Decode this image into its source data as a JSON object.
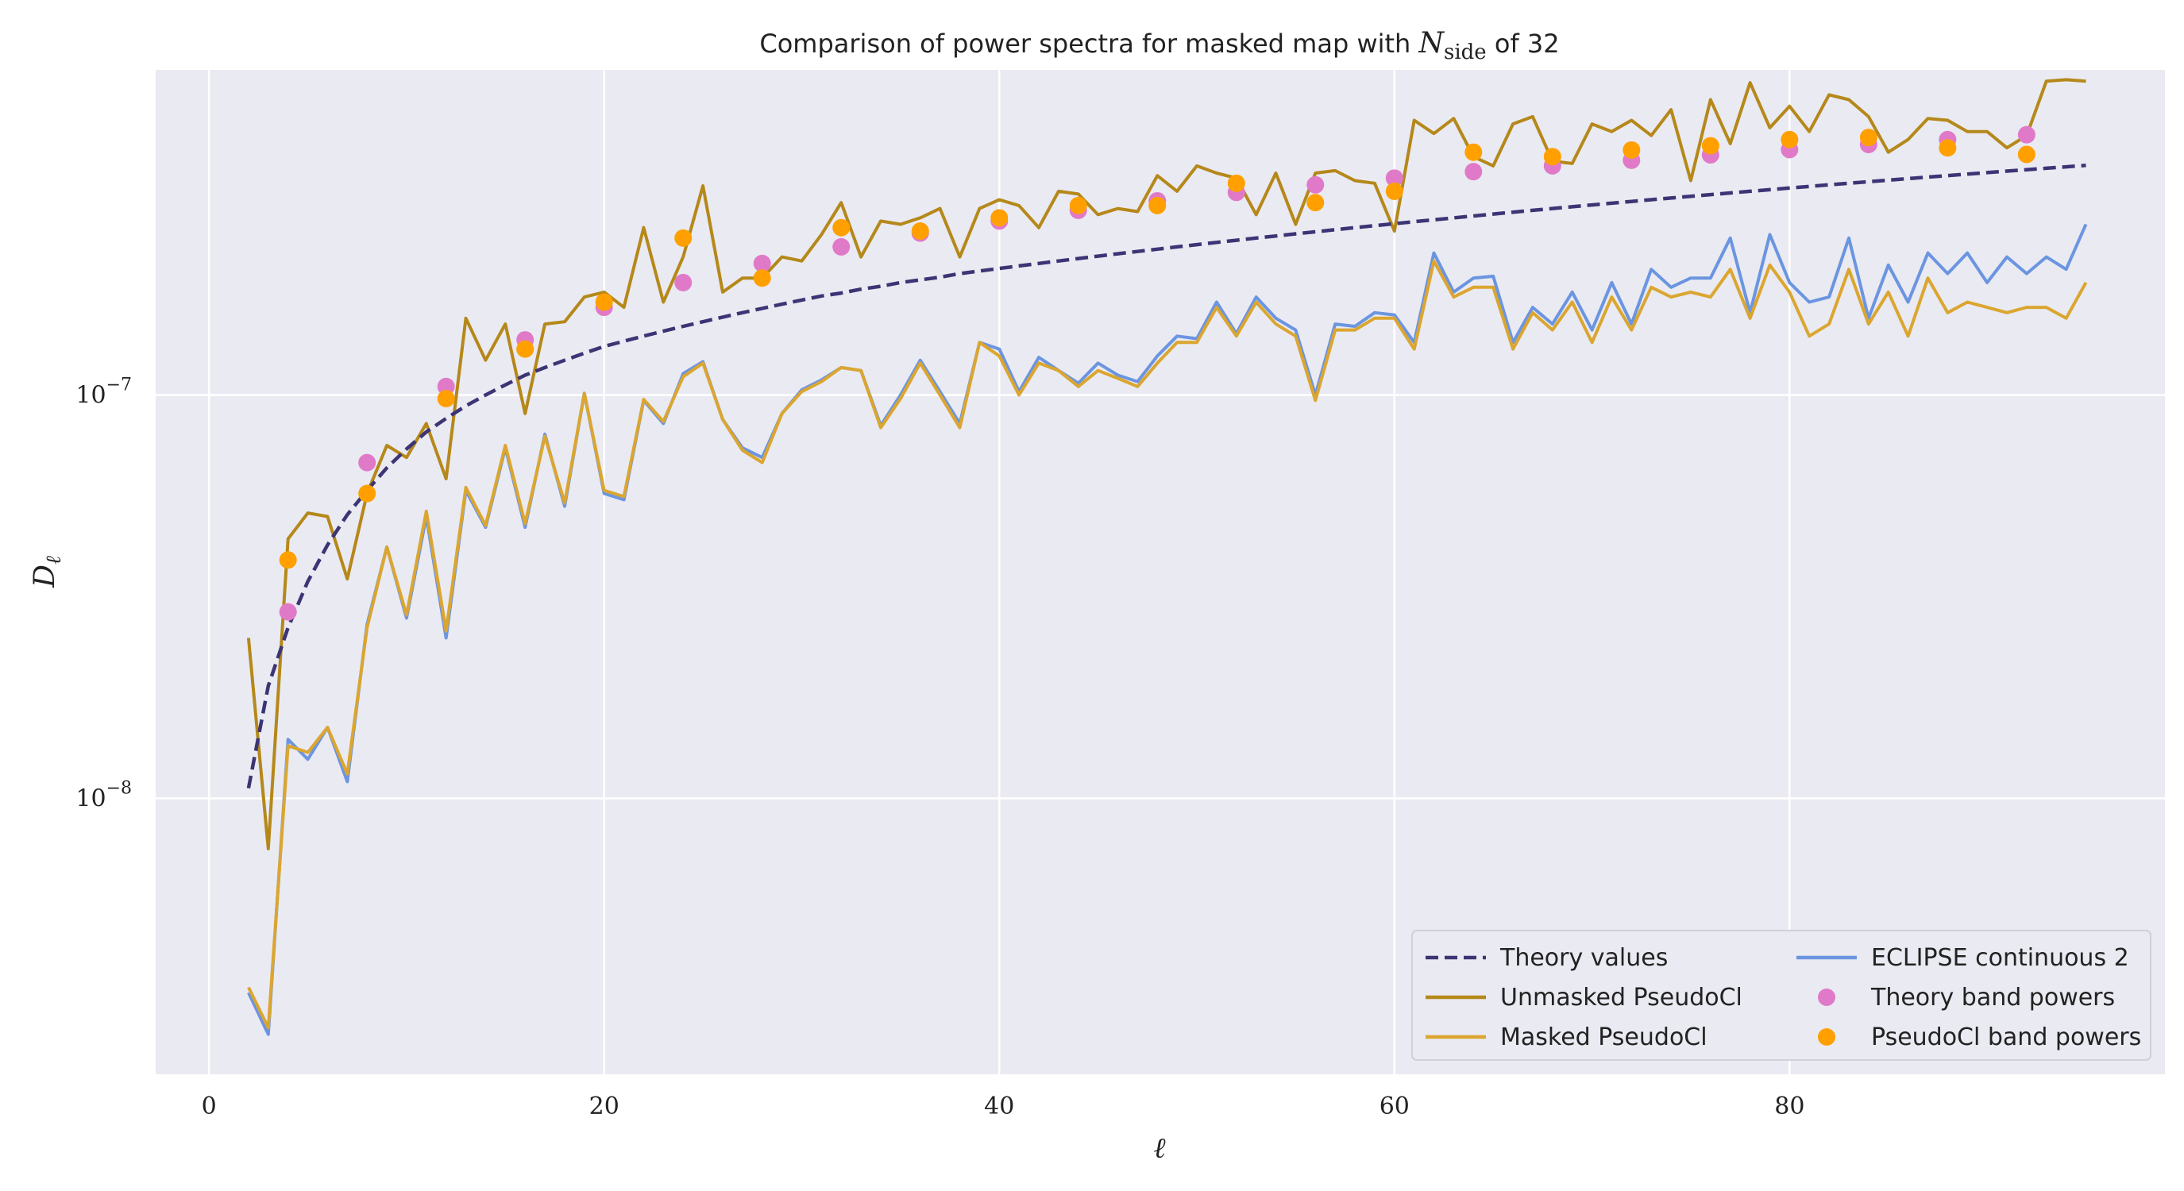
{
  "chart_data": {
    "type": "line",
    "title_prefix": "Comparison of power spectra for masked map with ",
    "title_var": "N",
    "title_sub": "side",
    "title_suffix": " of 32",
    "xlabel": "ℓ",
    "ylabel_var": "D",
    "ylabel_sub": "ℓ",
    "xlim": [
      -2.7,
      99
    ],
    "ylim": [
      2.07e-09,
      6.4e-07
    ],
    "yscale": "log",
    "grid": true,
    "legend_position": "bottom-right",
    "x_ticks": [
      0,
      20,
      40,
      60,
      80
    ],
    "x_tick_labels": [
      "0",
      "20",
      "40",
      "60",
      "80"
    ],
    "y_ticks": [
      1e-08,
      1e-07
    ],
    "y_tick_labels": [
      {
        "base": "10",
        "exp": "−8"
      },
      {
        "base": "10",
        "exp": "−7"
      }
    ],
    "colors": {
      "background": "#eaeaf2",
      "grid": "#ffffff",
      "theory": "#3b3575",
      "unmasked": "#b5881a",
      "masked": "#dba630",
      "eclipse": "#6b95e0",
      "theory_bp": "#e07ac8",
      "pseudo_bp": "#ffa000"
    },
    "legend": [
      {
        "key": "theory",
        "label": "Theory values",
        "kind": "dashed"
      },
      {
        "key": "unmasked",
        "label": "Unmasked PseudoCl",
        "kind": "line"
      },
      {
        "key": "masked",
        "label": "Masked PseudoCl",
        "kind": "line"
      },
      {
        "key": "eclipse",
        "label": "ECLIPSE continuous 2",
        "kind": "line"
      },
      {
        "key": "theory_bp",
        "label": "Theory band powers",
        "kind": "dot"
      },
      {
        "key": "pseudo_bp",
        "label": "PseudoCl band powers",
        "kind": "dot"
      }
    ],
    "series": [
      {
        "key": "theory",
        "x_start": 2,
        "values": [
          1.06e-08,
          1.9e-08,
          2.65e-08,
          3.45e-08,
          4.25e-08,
          5.05e-08,
          5.8e-08,
          6.6e-08,
          7.35e-08,
          8.1e-08,
          8.75e-08,
          9.4e-08,
          1e-07,
          1.06e-07,
          1.12e-07,
          1.17e-07,
          1.22e-07,
          1.27e-07,
          1.32e-07,
          1.36e-07,
          1.4e-07,
          1.44e-07,
          1.48e-07,
          1.52e-07,
          1.56e-07,
          1.6e-07,
          1.64e-07,
          1.68e-07,
          1.72e-07,
          1.76e-07,
          1.79e-07,
          1.83e-07,
          1.86e-07,
          1.9e-07,
          1.93e-07,
          1.96e-07,
          2e-07,
          2.03e-07,
          2.06e-07,
          2.09e-07,
          2.12e-07,
          2.15e-07,
          2.18e-07,
          2.21e-07,
          2.24e-07,
          2.27e-07,
          2.3e-07,
          2.33e-07,
          2.36e-07,
          2.39e-07,
          2.42e-07,
          2.45e-07,
          2.48e-07,
          2.51e-07,
          2.54e-07,
          2.57e-07,
          2.6e-07,
          2.63e-07,
          2.66e-07,
          2.69e-07,
          2.72e-07,
          2.75e-07,
          2.78e-07,
          2.81e-07,
          2.84e-07,
          2.87e-07,
          2.9e-07,
          2.93e-07,
          2.96e-07,
          2.99e-07,
          3.02e-07,
          3.05e-07,
          3.08e-07,
          3.11e-07,
          3.14e-07,
          3.17e-07,
          3.2e-07,
          3.23e-07,
          3.26e-07,
          3.29e-07,
          3.32e-07,
          3.35e-07,
          3.38e-07,
          3.41e-07,
          3.44e-07,
          3.47e-07,
          3.5e-07,
          3.53e-07,
          3.56e-07,
          3.59e-07,
          3.62e-07,
          3.65e-07,
          3.68e-07,
          3.71e-07
        ]
      },
      {
        "key": "unmasked",
        "x_start": 2,
        "values": [
          2.5e-08,
          7.5e-09,
          4.4e-08,
          5.1e-08,
          5e-08,
          3.5e-08,
          5.7e-08,
          7.5e-08,
          7e-08,
          8.5e-08,
          6.2e-08,
          1.55e-07,
          1.22e-07,
          1.5e-07,
          9e-08,
          1.5e-07,
          1.52e-07,
          1.75e-07,
          1.8e-07,
          1.65e-07,
          2.6e-07,
          1.7e-07,
          2.2e-07,
          3.3e-07,
          1.8e-07,
          1.95e-07,
          1.95e-07,
          2.2e-07,
          2.15e-07,
          2.5e-07,
          3e-07,
          2.2e-07,
          2.7e-07,
          2.65e-07,
          2.75e-07,
          2.9e-07,
          2.2e-07,
          2.9e-07,
          3.05e-07,
          2.95e-07,
          2.6e-07,
          3.2e-07,
          3.15e-07,
          2.8e-07,
          2.9e-07,
          2.85e-07,
          3.5e-07,
          3.2e-07,
          3.7e-07,
          3.55e-07,
          3.45e-07,
          2.8e-07,
          3.55e-07,
          2.65e-07,
          3.55e-07,
          3.6e-07,
          3.4e-07,
          3.35e-07,
          2.55e-07,
          4.8e-07,
          4.45e-07,
          4.85e-07,
          3.9e-07,
          3.7e-07,
          4.7e-07,
          4.9e-07,
          3.8e-07,
          3.75e-07,
          4.7e-07,
          4.5e-07,
          4.8e-07,
          4.4e-07,
          5.1e-07,
          3.4e-07,
          5.4e-07,
          4.2e-07,
          5.95e-07,
          4.6e-07,
          5.2e-07,
          4.5e-07,
          5.55e-07,
          5.4e-07,
          4.9e-07,
          4e-07,
          4.3e-07,
          4.85e-07,
          4.8e-07,
          4.5e-07,
          4.5e-07,
          4.1e-07,
          4.4e-07,
          6e-07,
          6.05e-07,
          6e-07
        ]
      },
      {
        "key": "masked",
        "x_start": 2,
        "values": [
          3.4e-09,
          2.7e-09,
          1.35e-08,
          1.3e-08,
          1.5e-08,
          1.15e-08,
          2.65e-08,
          4.2e-08,
          2.85e-08,
          5.15e-08,
          2.6e-08,
          5.9e-08,
          4.75e-08,
          7.5e-08,
          4.8e-08,
          7.9e-08,
          5.4e-08,
          1.01e-07,
          5.8e-08,
          5.6e-08,
          9.75e-08,
          8.6e-08,
          1.11e-07,
          1.2e-07,
          8.7e-08,
          7.3e-08,
          6.8e-08,
          9e-08,
          1.02e-07,
          1.08e-07,
          1.17e-07,
          1.15e-07,
          8.3e-08,
          9.8e-08,
          1.2e-07,
          1e-07,
          8.3e-08,
          1.35e-07,
          1.25e-07,
          1e-07,
          1.2e-07,
          1.15e-07,
          1.05e-07,
          1.15e-07,
          1.1e-07,
          1.05e-07,
          1.2e-07,
          1.35e-07,
          1.35e-07,
          1.65e-07,
          1.4e-07,
          1.7e-07,
          1.5e-07,
          1.4e-07,
          9.7e-08,
          1.45e-07,
          1.45e-07,
          1.55e-07,
          1.55e-07,
          1.3e-07,
          2.15e-07,
          1.75e-07,
          1.85e-07,
          1.85e-07,
          1.3e-07,
          1.6e-07,
          1.45e-07,
          1.7e-07,
          1.35e-07,
          1.75e-07,
          1.45e-07,
          1.85e-07,
          1.75e-07,
          1.8e-07,
          1.75e-07,
          2.05e-07,
          1.55e-07,
          2.1e-07,
          1.8e-07,
          1.4e-07,
          1.5e-07,
          2.05e-07,
          1.5e-07,
          1.8e-07,
          1.4e-07,
          1.95e-07,
          1.6e-07,
          1.7e-07,
          1.65e-07,
          1.6e-07,
          1.65e-07,
          1.65e-07,
          1.55e-07,
          1.9e-07
        ]
      },
      {
        "key": "eclipse",
        "x_start": 2,
        "values": [
          3.3e-09,
          2.6e-09,
          1.4e-08,
          1.25e-08,
          1.5e-08,
          1.1e-08,
          2.7e-08,
          4.2e-08,
          2.8e-08,
          5e-08,
          2.5e-08,
          5.8e-08,
          4.7e-08,
          7.4e-08,
          4.7e-08,
          8e-08,
          5.3e-08,
          1.01e-07,
          5.7e-08,
          5.5e-08,
          9.7e-08,
          8.5e-08,
          1.13e-07,
          1.21e-07,
          8.7e-08,
          7.4e-08,
          7e-08,
          9e-08,
          1.03e-07,
          1.09e-07,
          1.17e-07,
          1.15e-07,
          8.4e-08,
          1e-07,
          1.22e-07,
          1.02e-07,
          8.5e-08,
          1.35e-07,
          1.3e-07,
          1.02e-07,
          1.24e-07,
          1.15e-07,
          1.07e-07,
          1.2e-07,
          1.12e-07,
          1.08e-07,
          1.25e-07,
          1.4e-07,
          1.38e-07,
          1.7e-07,
          1.42e-07,
          1.75e-07,
          1.55e-07,
          1.45e-07,
          1e-07,
          1.5e-07,
          1.48e-07,
          1.6e-07,
          1.58e-07,
          1.35e-07,
          2.25e-07,
          1.8e-07,
          1.95e-07,
          1.97e-07,
          1.35e-07,
          1.65e-07,
          1.5e-07,
          1.8e-07,
          1.45e-07,
          1.9e-07,
          1.5e-07,
          2.05e-07,
          1.85e-07,
          1.95e-07,
          1.95e-07,
          2.45e-07,
          1.6e-07,
          2.5e-07,
          1.9e-07,
          1.7e-07,
          1.75e-07,
          2.45e-07,
          1.55e-07,
          2.1e-07,
          1.7e-07,
          2.25e-07,
          2e-07,
          2.25e-07,
          1.9e-07,
          2.2e-07,
          2e-07,
          2.2e-07,
          2.05e-07,
          2.65e-07
        ]
      }
    ],
    "points": [
      {
        "key": "theory_bp",
        "x": [
          4,
          8,
          12,
          16,
          20,
          24,
          28,
          32,
          36,
          40,
          44,
          48,
          52,
          56,
          60,
          64,
          68,
          72,
          76,
          80,
          84,
          88,
          92
        ],
        "values": [
          2.9e-08,
          6.8e-08,
          1.05e-07,
          1.37e-07,
          1.65e-07,
          1.9e-07,
          2.12e-07,
          2.33e-07,
          2.52e-07,
          2.7e-07,
          2.87e-07,
          3.03e-07,
          3.18e-07,
          3.32e-07,
          3.45e-07,
          3.58e-07,
          3.7e-07,
          3.82e-07,
          3.94e-07,
          4.06e-07,
          4.18e-07,
          4.3e-07,
          4.42e-07
        ]
      },
      {
        "key": "pseudo_bp",
        "x": [
          4,
          8,
          12,
          16,
          20,
          24,
          28,
          32,
          36,
          40,
          44,
          48,
          52,
          56,
          60,
          64,
          68,
          72,
          76,
          80,
          84,
          88,
          92
        ],
        "values": [
          3.9e-08,
          5.7e-08,
          9.8e-08,
          1.3e-07,
          1.7e-07,
          2.45e-07,
          1.95e-07,
          2.6e-07,
          2.55e-07,
          2.75e-07,
          2.95e-07,
          2.95e-07,
          3.35e-07,
          3e-07,
          3.2e-07,
          4e-07,
          3.9e-07,
          4.05e-07,
          4.15e-07,
          4.3e-07,
          4.35e-07,
          4.1e-07,
          3.95e-07
        ]
      }
    ]
  }
}
